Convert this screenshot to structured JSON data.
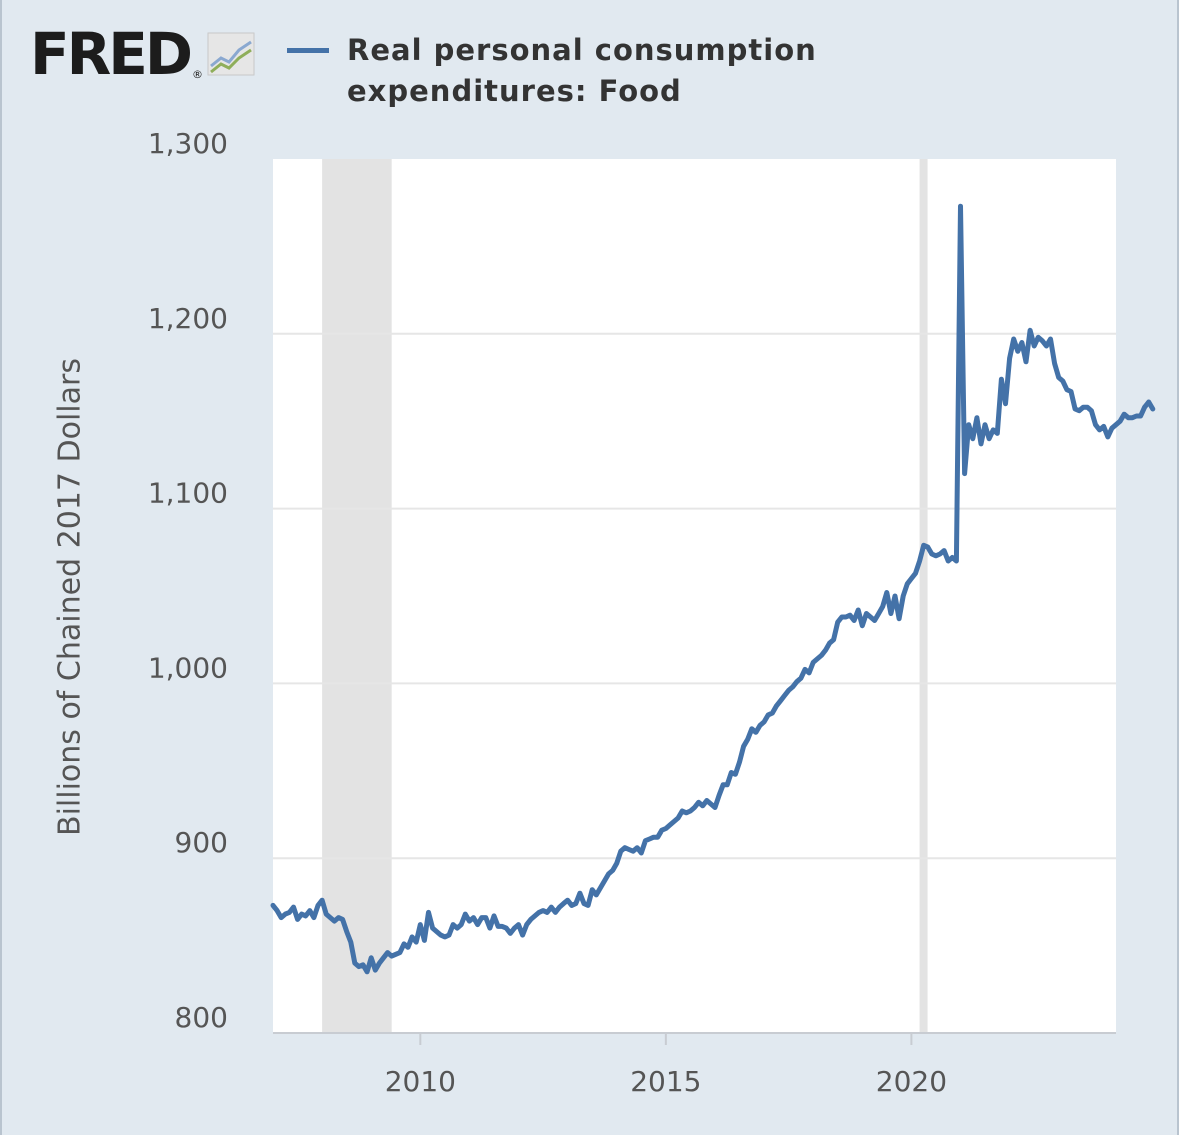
{
  "logo": {
    "text": "FRED",
    "icon": "chart-trend-icon"
  },
  "chart_data": {
    "type": "line",
    "title": "Real personal consumption expenditures: Food",
    "ylabel": "Billions of Chained 2017 Dollars",
    "xlabel": "",
    "ylim": [
      800,
      1300
    ],
    "yticks": [
      "800",
      "900",
      "1,000",
      "1,100",
      "1,200",
      "1,300"
    ],
    "xticks": [
      "2010",
      "2015",
      "2020"
    ],
    "xlim": [
      "2007-01",
      "2024-03"
    ],
    "grid": true,
    "legend": "top",
    "color": "#4472a8",
    "recessions": [
      [
        "2008-01",
        "2009-06"
      ],
      [
        "2020-03",
        "2020-04"
      ]
    ],
    "series": [
      {
        "name": "Real personal consumption expenditures: Food",
        "x_start": "2007-01",
        "frequency": "monthly",
        "values": [
          873,
          870,
          866,
          868,
          869,
          872,
          865,
          868,
          867,
          870,
          866,
          873,
          876,
          868,
          866,
          864,
          866,
          865,
          858,
          852,
          840,
          838,
          839,
          835,
          843,
          836,
          840,
          843,
          846,
          844,
          845,
          846,
          851,
          849,
          855,
          852,
          862,
          853,
          869,
          860,
          858,
          856,
          855,
          856,
          862,
          860,
          862,
          868,
          864,
          866,
          862,
          866,
          866,
          860,
          867,
          861,
          861,
          860,
          857,
          860,
          862,
          856,
          862,
          865,
          867,
          869,
          870,
          869,
          872,
          869,
          872,
          874,
          876,
          873,
          874,
          880,
          874,
          873,
          882,
          879,
          883,
          887,
          891,
          893,
          897,
          904,
          906,
          905,
          904,
          906,
          903,
          910,
          911,
          912,
          912,
          916,
          917,
          919,
          921,
          923,
          927,
          926,
          927,
          929,
          932,
          930,
          933,
          931,
          929,
          936,
          942,
          942,
          949,
          948,
          955,
          964,
          968,
          974,
          972,
          976,
          978,
          982,
          983,
          987,
          990,
          993,
          996,
          998,
          1001,
          1003,
          1008,
          1006,
          1012,
          1014,
          1016,
          1019,
          1023,
          1025,
          1035,
          1038,
          1038,
          1039,
          1036,
          1042,
          1033,
          1040,
          1038,
          1036,
          1040,
          1044,
          1052,
          1040,
          1050,
          1037,
          1050,
          1057,
          1060,
          1063,
          1070,
          1079,
          1078,
          1074,
          1073,
          1074,
          1076,
          1070,
          1072,
          1070,
          1273,
          1120,
          1148,
          1140,
          1152,
          1137,
          1148,
          1140,
          1145,
          1143,
          1174,
          1160,
          1186,
          1197,
          1190,
          1195,
          1184,
          1202,
          1193,
          1198,
          1196,
          1193,
          1197,
          1183,
          1175,
          1173,
          1168,
          1167,
          1157,
          1156,
          1158,
          1158,
          1156,
          1148,
          1145,
          1147,
          1141,
          1146,
          1148,
          1150,
          1154,
          1152,
          1152,
          1153,
          1153,
          1158,
          1161,
          1157
        ]
      }
    ]
  }
}
